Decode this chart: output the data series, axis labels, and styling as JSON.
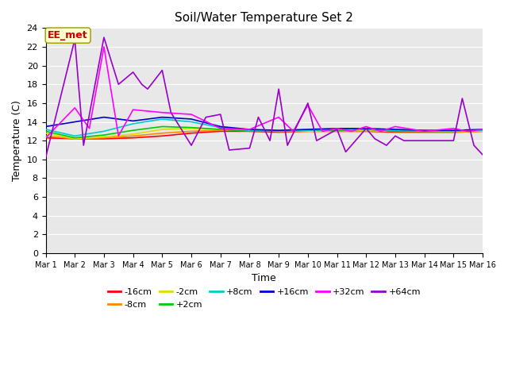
{
  "title": "Soil/Water Temperature Set 2",
  "xlabel": "Time",
  "ylabel": "Temperature (C)",
  "ylim": [
    0,
    24
  ],
  "xlim": [
    0,
    15
  ],
  "yticks": [
    0,
    2,
    4,
    6,
    8,
    10,
    12,
    14,
    16,
    18,
    20,
    22,
    24
  ],
  "xtick_labels": [
    "Mar 1",
    "Mar 2",
    "Mar 3",
    "Mar 4",
    "Mar 5",
    "Mar 6",
    "Mar 7",
    "Mar 8",
    "Mar 9",
    "Mar 10",
    "Mar 11",
    "Mar 12",
    "Mar 13",
    "Mar 14",
    "Mar 15",
    "Mar 16"
  ],
  "bg_color": "#e8e8e8",
  "fig_color": "#ffffff",
  "annotation_text": "EE_met",
  "annotation_color": "#cc0000",
  "annotation_bg": "#ffffcc",
  "series_order": [
    "-16cm",
    "-8cm",
    "-2cm",
    "+2cm",
    "+8cm",
    "+16cm",
    "+32cm",
    "+64cm"
  ],
  "series": {
    "-16cm": {
      "color": "#ff0000",
      "x": [
        0,
        1,
        2,
        3,
        4,
        5,
        6,
        7,
        8,
        9,
        10,
        11,
        12,
        13,
        14,
        15
      ],
      "y": [
        12.3,
        12.2,
        12.2,
        12.3,
        12.5,
        12.8,
        13.0,
        13.0,
        12.9,
        13.0,
        13.0,
        13.0,
        12.9,
        12.9,
        12.9,
        13.0
      ]
    },
    "-8cm": {
      "color": "#ff8800",
      "x": [
        0,
        1,
        2,
        3,
        4,
        5,
        6,
        7,
        8,
        9,
        10,
        11,
        12,
        13,
        14,
        15
      ],
      "y": [
        12.5,
        12.2,
        12.3,
        12.5,
        12.8,
        13.0,
        13.1,
        13.1,
        13.0,
        13.0,
        13.0,
        13.0,
        13.0,
        13.0,
        12.9,
        13.0
      ]
    },
    "-2cm": {
      "color": "#dddd00",
      "x": [
        0,
        1,
        2,
        3,
        4,
        5,
        6,
        7,
        8,
        9,
        10,
        11,
        12,
        13,
        14,
        15
      ],
      "y": [
        12.8,
        12.2,
        12.4,
        12.7,
        13.2,
        13.3,
        13.2,
        13.1,
        13.0,
        13.0,
        13.1,
        13.1,
        13.0,
        13.0,
        13.0,
        13.0
      ]
    },
    "+2cm": {
      "color": "#00cc00",
      "x": [
        0,
        1,
        2,
        3,
        4,
        5,
        6,
        7,
        8,
        9,
        10,
        11,
        12,
        13,
        14,
        15
      ],
      "y": [
        13.0,
        12.3,
        12.6,
        13.1,
        13.5,
        13.4,
        13.2,
        13.0,
        13.0,
        13.1,
        13.1,
        13.2,
        13.0,
        13.0,
        13.0,
        13.1
      ]
    },
    "+8cm": {
      "color": "#00cccc",
      "x": [
        0,
        1,
        2,
        3,
        4,
        5,
        6,
        7,
        8,
        9,
        10,
        11,
        12,
        13,
        14,
        15
      ],
      "y": [
        13.2,
        12.5,
        13.0,
        13.8,
        14.3,
        14.0,
        13.4,
        13.1,
        13.0,
        13.1,
        13.2,
        13.2,
        13.1,
        13.0,
        13.0,
        13.1
      ]
    },
    "+16cm": {
      "color": "#0000cc",
      "x": [
        0,
        1,
        2,
        3,
        4,
        5,
        6,
        7,
        8,
        9,
        10,
        11,
        12,
        13,
        14,
        15
      ],
      "y": [
        13.5,
        14.0,
        14.5,
        14.1,
        14.5,
        14.3,
        13.5,
        13.2,
        13.1,
        13.2,
        13.3,
        13.3,
        13.2,
        13.1,
        13.1,
        13.2
      ]
    },
    "+32cm": {
      "color": "#ff00ff",
      "x": [
        0,
        1,
        1.5,
        2,
        2.5,
        3,
        4,
        5,
        6,
        7,
        8,
        8.5,
        9,
        9.5,
        10,
        10.5,
        11,
        11.5,
        12,
        13,
        14,
        14.5,
        15
      ],
      "y": [
        12.3,
        15.5,
        13.3,
        22.0,
        12.5,
        15.3,
        15.0,
        14.8,
        13.3,
        13.2,
        14.5,
        13.0,
        15.8,
        13.0,
        13.3,
        13.0,
        13.5,
        13.0,
        13.5,
        13.0,
        13.3,
        13.0,
        13.2
      ]
    },
    "+64cm": {
      "color": "#9900cc",
      "x": [
        0,
        1,
        1.3,
        2,
        2.5,
        3,
        3.3,
        3.5,
        4,
        4.3,
        5,
        5.5,
        6,
        6.3,
        7,
        7.3,
        7.7,
        8,
        8.3,
        9,
        9.3,
        10,
        10.3,
        11,
        11.3,
        11.7,
        12,
        12.3,
        13,
        13.5,
        14,
        14.3,
        14.7,
        15
      ],
      "y": [
        10.2,
        22.8,
        11.5,
        23.0,
        18.0,
        19.3,
        18.0,
        17.5,
        19.5,
        15.0,
        11.5,
        14.5,
        14.8,
        11.0,
        11.2,
        14.5,
        12.0,
        17.5,
        11.5,
        16.0,
        12.0,
        13.2,
        10.8,
        13.3,
        12.2,
        11.5,
        12.5,
        12.0,
        12.0,
        12.0,
        12.0,
        16.5,
        11.5,
        10.5
      ]
    }
  }
}
